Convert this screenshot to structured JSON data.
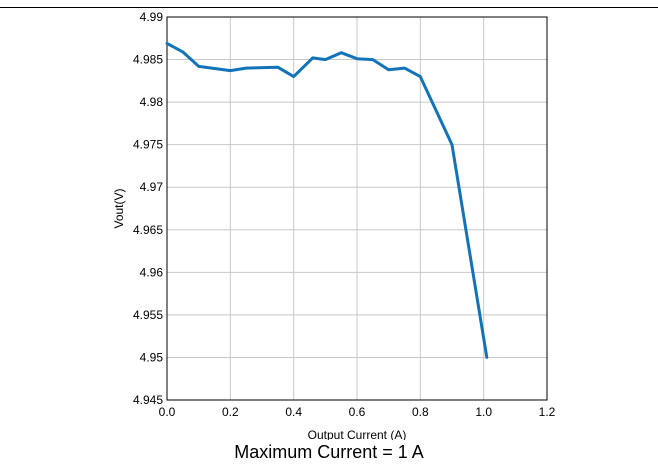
{
  "chart_data": {
    "type": "line",
    "xlabel": "Output Current (A)",
    "ylabel": "Vout(V)",
    "xlim": [
      0,
      1.2
    ],
    "ylim": [
      4.945,
      4.99
    ],
    "xticks": [
      0.0,
      0.2,
      0.4,
      0.6,
      0.8,
      1.0,
      1.2
    ],
    "xtick_labels": [
      "0.0",
      "0.2",
      "0.4",
      "0.6",
      "0.8",
      "1.0",
      "1.2"
    ],
    "yticks": [
      4.945,
      4.95,
      4.955,
      4.96,
      4.965,
      4.97,
      4.975,
      4.98,
      4.985,
      4.99
    ],
    "ytick_labels": [
      "4.945",
      "4.95",
      "4.955",
      "4.96",
      "4.965",
      "4.97",
      "4.975",
      "4.98",
      "4.985",
      "4.99"
    ],
    "grid": true,
    "series": [
      {
        "color": "#1273b9",
        "x": [
          0.0,
          0.05,
          0.1,
          0.2,
          0.25,
          0.35,
          0.4,
          0.46,
          0.5,
          0.55,
          0.6,
          0.65,
          0.7,
          0.75,
          0.8,
          0.9,
          1.01
        ],
        "y": [
          4.9869,
          4.9859,
          4.9842,
          4.9837,
          4.984,
          4.9841,
          4.983,
          4.9852,
          4.985,
          4.9858,
          4.9851,
          4.985,
          4.9838,
          4.984,
          4.983,
          4.975,
          4.95
        ]
      }
    ]
  },
  "caption": "Maximum Current = 1 A"
}
